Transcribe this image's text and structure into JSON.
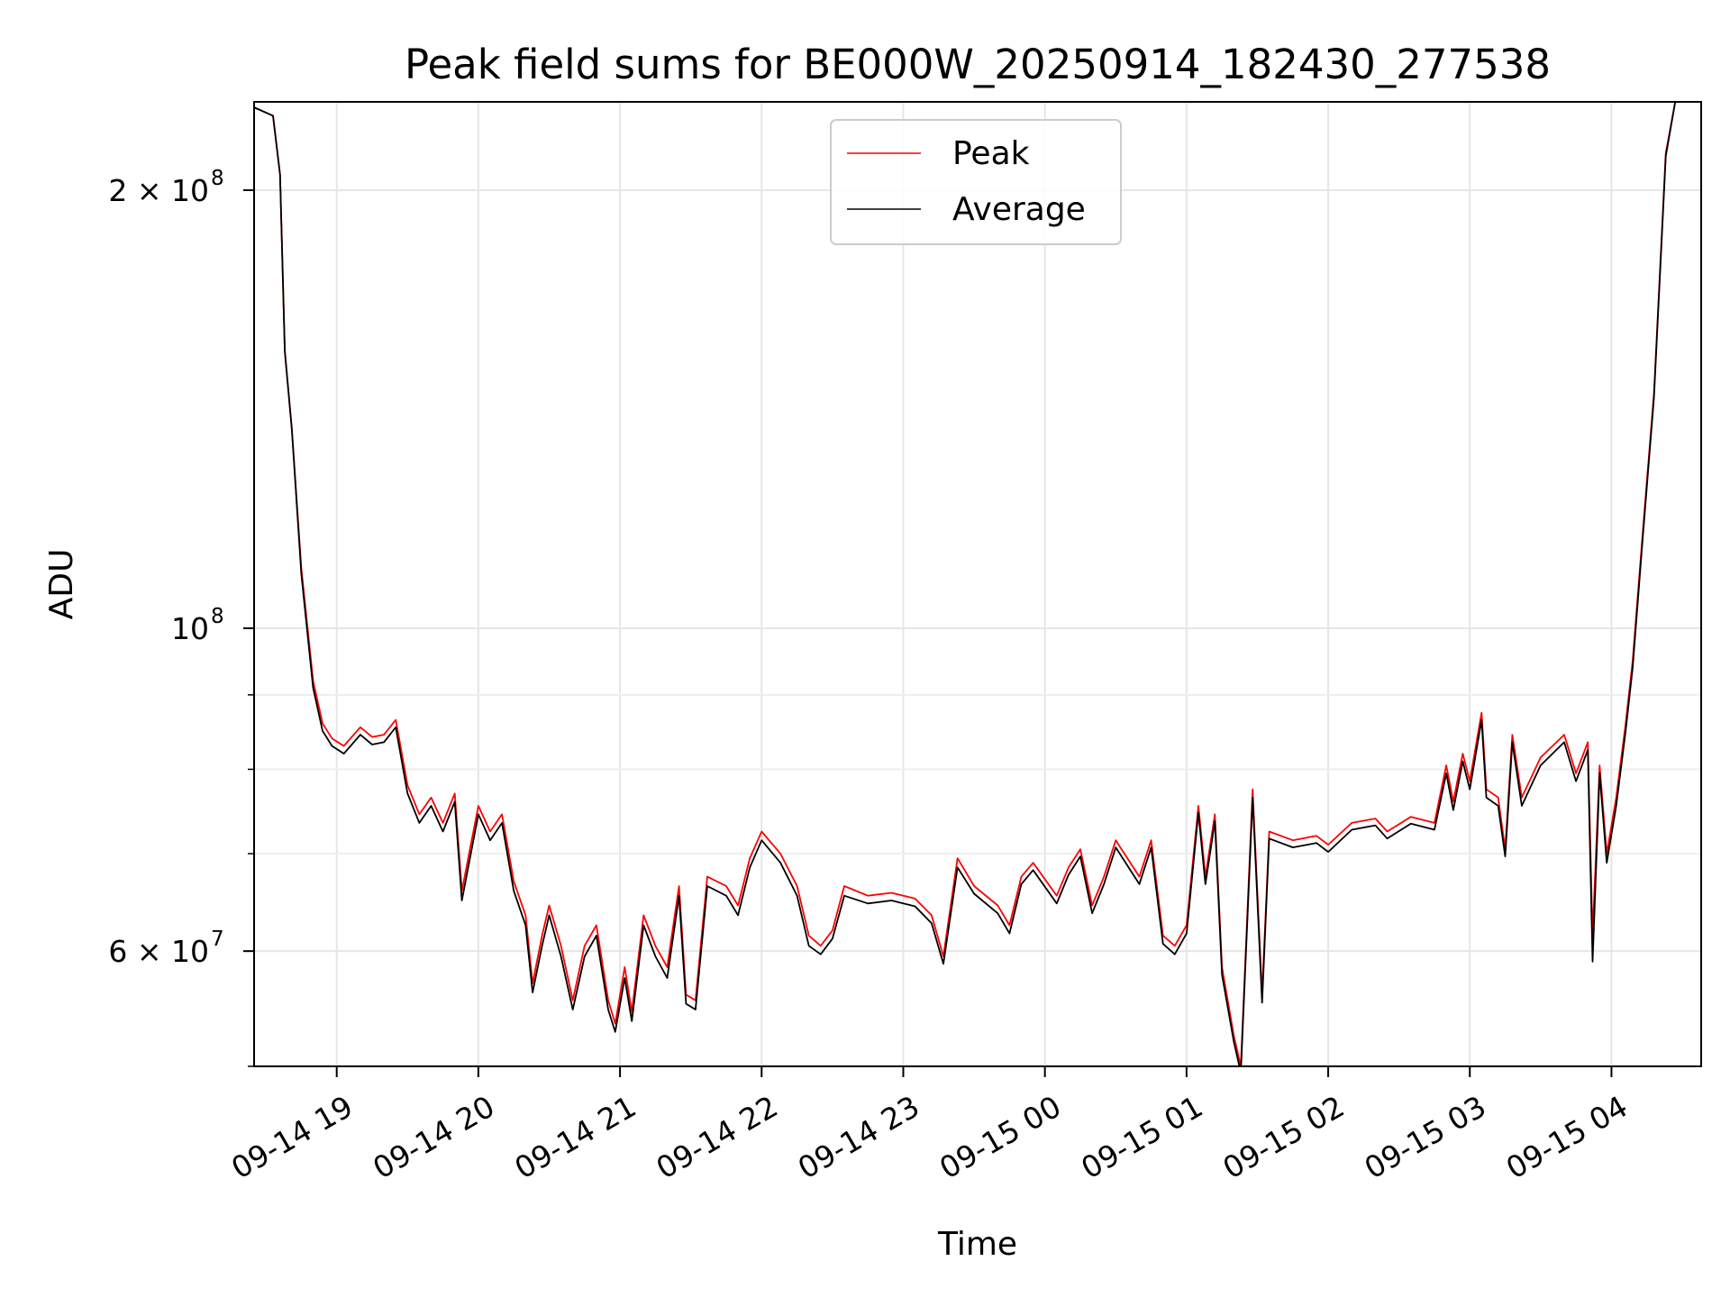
{
  "chart_data": {
    "type": "line",
    "title": "Peak field sums for BE000W_20250914_182430_277538",
    "xlabel": "Time",
    "ylabel": "ADU",
    "y_scale": "log",
    "ylim": [
      50000000,
      230000000
    ],
    "xlim": [
      "2025-09-14 18:25",
      "2025-09-15 04:38"
    ],
    "grid": true,
    "legend_position": "upper center",
    "x_ticks": [
      {
        "value": "2025-09-14 19:00",
        "label": "09-14 19"
      },
      {
        "value": "2025-09-14 20:00",
        "label": "09-14 20"
      },
      {
        "value": "2025-09-14 21:00",
        "label": "09-14 21"
      },
      {
        "value": "2025-09-14 22:00",
        "label": "09-14 22"
      },
      {
        "value": "2025-09-14 23:00",
        "label": "09-14 23"
      },
      {
        "value": "2025-09-15 00:00",
        "label": "09-15 00"
      },
      {
        "value": "2025-09-15 01:00",
        "label": "09-15 01"
      },
      {
        "value": "2025-09-15 02:00",
        "label": "09-15 02"
      },
      {
        "value": "2025-09-15 03:00",
        "label": "09-15 03"
      },
      {
        "value": "2025-09-15 04:00",
        "label": "09-15 04"
      }
    ],
    "y_ticks": [
      {
        "value": 200000000,
        "base": "2 × 10",
        "exp": "8"
      },
      {
        "value": 100000000,
        "base": "10",
        "exp": "8"
      },
      {
        "value": 60000000,
        "base": "6 × 10",
        "exp": "7"
      }
    ],
    "series": [
      {
        "name": "Peak",
        "color": "#ff0000",
        "points": [
          [
            "2025-09-14 18:25",
            228000000
          ],
          [
            "2025-09-14 18:33",
            225000000
          ],
          [
            "2025-09-14 18:36",
            205000000
          ],
          [
            "2025-09-14 18:38",
            155000000
          ],
          [
            "2025-09-14 18:41",
            137000000
          ],
          [
            "2025-09-14 18:45",
            110000000
          ],
          [
            "2025-09-14 18:50",
            92000000
          ],
          [
            "2025-09-14 18:54",
            86000000
          ],
          [
            "2025-09-14 18:58",
            84000000
          ],
          [
            "2025-09-14 19:03",
            83000000
          ],
          [
            "2025-09-14 19:10",
            85500000
          ],
          [
            "2025-09-14 19:15",
            84200000
          ],
          [
            "2025-09-14 19:20",
            84500000
          ],
          [
            "2025-09-14 19:25",
            86500000
          ],
          [
            "2025-09-14 19:30",
            78000000
          ],
          [
            "2025-09-14 19:35",
            74500000
          ],
          [
            "2025-09-14 19:40",
            76500000
          ],
          [
            "2025-09-14 19:45",
            73500000
          ],
          [
            "2025-09-14 19:50",
            77000000
          ],
          [
            "2025-09-14 19:53",
            66000000
          ],
          [
            "2025-09-14 20:00",
            75500000
          ],
          [
            "2025-09-14 20:05",
            72500000
          ],
          [
            "2025-09-14 20:10",
            74500000
          ],
          [
            "2025-09-14 20:15",
            67000000
          ],
          [
            "2025-09-14 20:20",
            63500000
          ],
          [
            "2025-09-14 20:23",
            57000000
          ],
          [
            "2025-09-14 20:27",
            61500000
          ],
          [
            "2025-09-14 20:30",
            64500000
          ],
          [
            "2025-09-14 20:35",
            60500000
          ],
          [
            "2025-09-14 20:40",
            55500000
          ],
          [
            "2025-09-14 20:45",
            60500000
          ],
          [
            "2025-09-14 20:50",
            62500000
          ],
          [
            "2025-09-14 20:55",
            55500000
          ],
          [
            "2025-09-14 20:58",
            53500000
          ],
          [
            "2025-09-14 21:02",
            58500000
          ],
          [
            "2025-09-14 21:05",
            54500000
          ],
          [
            "2025-09-14 21:10",
            63500000
          ],
          [
            "2025-09-14 21:15",
            60500000
          ],
          [
            "2025-09-14 21:20",
            58500000
          ],
          [
            "2025-09-14 21:25",
            66500000
          ],
          [
            "2025-09-14 21:28",
            56000000
          ],
          [
            "2025-09-14 21:32",
            55500000
          ],
          [
            "2025-09-14 21:37",
            67500000
          ],
          [
            "2025-09-14 21:45",
            66500000
          ],
          [
            "2025-09-14 21:50",
            64500000
          ],
          [
            "2025-09-14 21:55",
            69500000
          ],
          [
            "2025-09-14 22:00",
            72500000
          ],
          [
            "2025-09-14 22:08",
            70000000
          ],
          [
            "2025-09-14 22:15",
            66500000
          ],
          [
            "2025-09-14 22:20",
            61500000
          ],
          [
            "2025-09-14 22:25",
            60500000
          ],
          [
            "2025-09-14 22:30",
            62000000
          ],
          [
            "2025-09-14 22:35",
            66500000
          ],
          [
            "2025-09-14 22:45",
            65500000
          ],
          [
            "2025-09-14 22:55",
            65800000
          ],
          [
            "2025-09-14 23:05",
            65200000
          ],
          [
            "2025-09-14 23:12",
            63500000
          ],
          [
            "2025-09-14 23:17",
            59500000
          ],
          [
            "2025-09-14 23:23",
            69500000
          ],
          [
            "2025-09-14 23:30",
            66500000
          ],
          [
            "2025-09-14 23:40",
            64500000
          ],
          [
            "2025-09-14 23:45",
            62500000
          ],
          [
            "2025-09-14 23:50",
            67500000
          ],
          [
            "2025-09-14 23:55",
            69000000
          ],
          [
            "2025-09-15 00:05",
            65500000
          ],
          [
            "2025-09-15 00:10",
            68500000
          ],
          [
            "2025-09-15 00:15",
            70500000
          ],
          [
            "2025-09-15 00:20",
            64500000
          ],
          [
            "2025-09-15 00:25",
            67500000
          ],
          [
            "2025-09-15 00:30",
            71500000
          ],
          [
            "2025-09-15 00:40",
            67500000
          ],
          [
            "2025-09-15 00:45",
            71500000
          ],
          [
            "2025-09-15 00:50",
            61500000
          ],
          [
            "2025-09-15 00:55",
            60500000
          ],
          [
            "2025-09-15 01:00",
            62500000
          ],
          [
            "2025-09-15 01:05",
            75500000
          ],
          [
            "2025-09-15 01:08",
            67500000
          ],
          [
            "2025-09-15 01:12",
            74500000
          ],
          [
            "2025-09-15 01:15",
            58500000
          ],
          [
            "2025-09-15 01:20",
            52500000
          ],
          [
            "2025-09-15 01:23",
            50000000
          ],
          [
            "2025-09-15 01:28",
            77500000
          ],
          [
            "2025-09-15 01:32",
            56000000
          ],
          [
            "2025-09-15 01:35",
            72500000
          ],
          [
            "2025-09-15 01:45",
            71500000
          ],
          [
            "2025-09-15 01:55",
            72000000
          ],
          [
            "2025-09-15 02:00",
            71000000
          ],
          [
            "2025-09-15 02:10",
            73500000
          ],
          [
            "2025-09-15 02:20",
            74000000
          ],
          [
            "2025-09-15 02:25",
            72500000
          ],
          [
            "2025-09-15 02:35",
            74200000
          ],
          [
            "2025-09-15 02:45",
            73500000
          ],
          [
            "2025-09-15 02:50",
            80500000
          ],
          [
            "2025-09-15 02:53",
            76000000
          ],
          [
            "2025-09-15 02:57",
            82000000
          ],
          [
            "2025-09-15 03:00",
            78500000
          ],
          [
            "2025-09-15 03:05",
            87500000
          ],
          [
            "2025-09-15 03:07",
            77500000
          ],
          [
            "2025-09-15 03:12",
            76500000
          ],
          [
            "2025-09-15 03:15",
            70500000
          ],
          [
            "2025-09-15 03:18",
            84500000
          ],
          [
            "2025-09-15 03:22",
            76500000
          ],
          [
            "2025-09-15 03:30",
            81500000
          ],
          [
            "2025-09-15 03:40",
            84500000
          ],
          [
            "2025-09-15 03:45",
            79500000
          ],
          [
            "2025-09-15 03:50",
            83500000
          ],
          [
            "2025-09-15 03:52",
            61500000
          ],
          [
            "2025-09-15 03:55",
            80500000
          ],
          [
            "2025-09-15 03:58",
            70000000
          ],
          [
            "2025-09-15 04:02",
            76500000
          ],
          [
            "2025-09-15 04:06",
            86000000
          ],
          [
            "2025-09-15 04:09",
            95000000
          ],
          [
            "2025-09-15 04:13",
            115000000
          ],
          [
            "2025-09-15 04:18",
            145000000
          ],
          [
            "2025-09-15 04:23",
            212000000
          ],
          [
            "2025-09-15 04:27",
            230000000
          ]
        ]
      },
      {
        "name": "Average",
        "color": "#000000",
        "points": [
          [
            "2025-09-14 18:25",
            228000000
          ],
          [
            "2025-09-14 18:33",
            225000000
          ],
          [
            "2025-09-14 18:36",
            205000000
          ],
          [
            "2025-09-14 18:38",
            155000000
          ],
          [
            "2025-09-14 18:41",
            137000000
          ],
          [
            "2025-09-14 18:45",
            109000000
          ],
          [
            "2025-09-14 18:50",
            91000000
          ],
          [
            "2025-09-14 18:54",
            85000000
          ],
          [
            "2025-09-14 18:58",
            83000000
          ],
          [
            "2025-09-14 19:03",
            82000000
          ],
          [
            "2025-09-14 19:10",
            84500000
          ],
          [
            "2025-09-14 19:15",
            83200000
          ],
          [
            "2025-09-14 19:20",
            83500000
          ],
          [
            "2025-09-14 19:25",
            85500000
          ],
          [
            "2025-09-14 19:30",
            77000000
          ],
          [
            "2025-09-14 19:35",
            73500000
          ],
          [
            "2025-09-14 19:40",
            75500000
          ],
          [
            "2025-09-14 19:45",
            72500000
          ],
          [
            "2025-09-14 19:50",
            76000000
          ],
          [
            "2025-09-14 19:53",
            65000000
          ],
          [
            "2025-09-14 20:00",
            74500000
          ],
          [
            "2025-09-14 20:05",
            71500000
          ],
          [
            "2025-09-14 20:10",
            73500000
          ],
          [
            "2025-09-14 20:15",
            66000000
          ],
          [
            "2025-09-14 20:20",
            62500000
          ],
          [
            "2025-09-14 20:23",
            56200000
          ],
          [
            "2025-09-14 20:27",
            60500000
          ],
          [
            "2025-09-14 20:30",
            63500000
          ],
          [
            "2025-09-14 20:35",
            59500000
          ],
          [
            "2025-09-14 20:40",
            54700000
          ],
          [
            "2025-09-14 20:45",
            59500000
          ],
          [
            "2025-09-14 20:50",
            61500000
          ],
          [
            "2025-09-14 20:55",
            54700000
          ],
          [
            "2025-09-14 20:58",
            52800000
          ],
          [
            "2025-09-14 21:02",
            57500000
          ],
          [
            "2025-09-14 21:05",
            53700000
          ],
          [
            "2025-09-14 21:10",
            62500000
          ],
          [
            "2025-09-14 21:15",
            59500000
          ],
          [
            "2025-09-14 21:20",
            57500000
          ],
          [
            "2025-09-14 21:25",
            65500000
          ],
          [
            "2025-09-14 21:28",
            55200000
          ],
          [
            "2025-09-14 21:32",
            54700000
          ],
          [
            "2025-09-14 21:37",
            66500000
          ],
          [
            "2025-09-14 21:45",
            65500000
          ],
          [
            "2025-09-14 21:50",
            63500000
          ],
          [
            "2025-09-14 21:55",
            68500000
          ],
          [
            "2025-09-14 22:00",
            71500000
          ],
          [
            "2025-09-14 22:08",
            69000000
          ],
          [
            "2025-09-14 22:15",
            65500000
          ],
          [
            "2025-09-14 22:20",
            60500000
          ],
          [
            "2025-09-14 22:25",
            59700000
          ],
          [
            "2025-09-14 22:30",
            61200000
          ],
          [
            "2025-09-14 22:35",
            65500000
          ],
          [
            "2025-09-14 22:45",
            64700000
          ],
          [
            "2025-09-14 22:55",
            65000000
          ],
          [
            "2025-09-14 23:05",
            64400000
          ],
          [
            "2025-09-14 23:12",
            62700000
          ],
          [
            "2025-09-14 23:17",
            58800000
          ],
          [
            "2025-09-14 23:23",
            68500000
          ],
          [
            "2025-09-14 23:30",
            65700000
          ],
          [
            "2025-09-14 23:40",
            63700000
          ],
          [
            "2025-09-14 23:45",
            61700000
          ],
          [
            "2025-09-14 23:50",
            66700000
          ],
          [
            "2025-09-14 23:55",
            68200000
          ],
          [
            "2025-09-15 00:05",
            64700000
          ],
          [
            "2025-09-15 00:10",
            67700000
          ],
          [
            "2025-09-15 00:15",
            69700000
          ],
          [
            "2025-09-15 00:20",
            63700000
          ],
          [
            "2025-09-15 00:25",
            66700000
          ],
          [
            "2025-09-15 00:30",
            70700000
          ],
          [
            "2025-09-15 00:40",
            66700000
          ],
          [
            "2025-09-15 00:45",
            70700000
          ],
          [
            "2025-09-15 00:50",
            60700000
          ],
          [
            "2025-09-15 00:55",
            59700000
          ],
          [
            "2025-09-15 01:00",
            61700000
          ],
          [
            "2025-09-15 01:05",
            74700000
          ],
          [
            "2025-09-15 01:08",
            66700000
          ],
          [
            "2025-09-15 01:12",
            73700000
          ],
          [
            "2025-09-15 01:15",
            57800000
          ],
          [
            "2025-09-15 01:20",
            52000000
          ],
          [
            "2025-09-15 01:23",
            49500000
          ],
          [
            "2025-09-15 01:28",
            76500000
          ],
          [
            "2025-09-15 01:32",
            55300000
          ],
          [
            "2025-09-15 01:35",
            71700000
          ],
          [
            "2025-09-15 01:45",
            70700000
          ],
          [
            "2025-09-15 01:55",
            71200000
          ],
          [
            "2025-09-15 02:00",
            70200000
          ],
          [
            "2025-09-15 02:10",
            72700000
          ],
          [
            "2025-09-15 02:20",
            73200000
          ],
          [
            "2025-09-15 02:25",
            71700000
          ],
          [
            "2025-09-15 02:35",
            73400000
          ],
          [
            "2025-09-15 02:45",
            72700000
          ],
          [
            "2025-09-15 02:50",
            79500000
          ],
          [
            "2025-09-15 02:53",
            75000000
          ],
          [
            "2025-09-15 02:57",
            81000000
          ],
          [
            "2025-09-15 03:00",
            77500000
          ],
          [
            "2025-09-15 03:05",
            86500000
          ],
          [
            "2025-09-15 03:07",
            76500000
          ],
          [
            "2025-09-15 03:12",
            75500000
          ],
          [
            "2025-09-15 03:15",
            69700000
          ],
          [
            "2025-09-15 03:18",
            83500000
          ],
          [
            "2025-09-15 03:22",
            75500000
          ],
          [
            "2025-09-15 03:30",
            80500000
          ],
          [
            "2025-09-15 03:40",
            83500000
          ],
          [
            "2025-09-15 03:45",
            78500000
          ],
          [
            "2025-09-15 03:50",
            82500000
          ],
          [
            "2025-09-15 03:52",
            59000000
          ],
          [
            "2025-09-15 03:55",
            79500000
          ],
          [
            "2025-09-15 03:58",
            69000000
          ],
          [
            "2025-09-15 04:02",
            75500000
          ],
          [
            "2025-09-15 04:06",
            85000000
          ],
          [
            "2025-09-15 04:09",
            94000000
          ],
          [
            "2025-09-15 04:13",
            114000000
          ],
          [
            "2025-09-15 04:18",
            144000000
          ],
          [
            "2025-09-15 04:23",
            211000000
          ],
          [
            "2025-09-15 04:27",
            230000000
          ]
        ]
      }
    ]
  }
}
